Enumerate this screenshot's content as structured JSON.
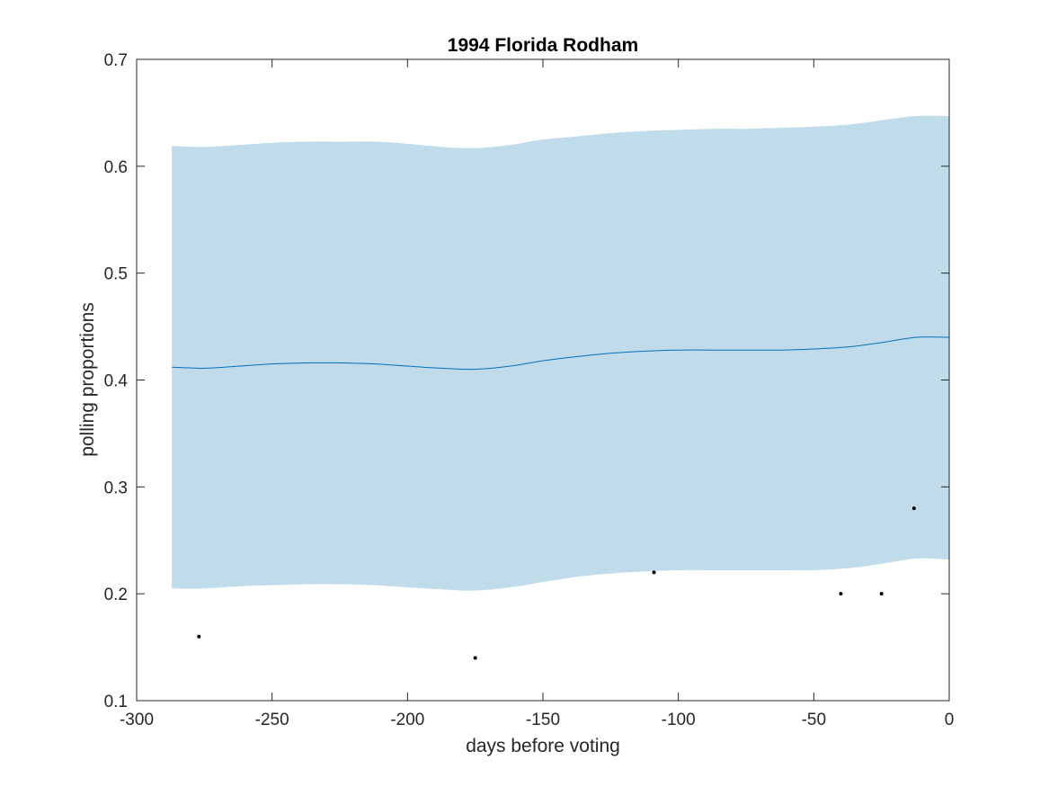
{
  "chart_data": {
    "type": "line",
    "title": "1994 Florida Rodham",
    "xlabel": "days before voting",
    "ylabel": "polling proportions",
    "xlim": [
      -300,
      0
    ],
    "ylim": [
      0.1,
      0.7
    ],
    "xticks": [
      -300,
      -250,
      -200,
      -150,
      -100,
      -50,
      0
    ],
    "yticks": [
      0.1,
      0.2,
      0.3,
      0.4,
      0.5,
      0.6,
      0.7
    ],
    "xtick_labels": [
      "-300",
      "-250",
      "-200",
      "-150",
      "-100",
      "-50",
      "0"
    ],
    "ytick_labels": [
      "0.1",
      "0.2",
      "0.3",
      "0.4",
      "0.5",
      "0.6",
      "0.7"
    ],
    "grid": false,
    "series": [
      {
        "kind": "mean-line",
        "color": "#0072bd",
        "x": [
          -287,
          -275,
          -262,
          -250,
          -237,
          -225,
          -212,
          -200,
          -187,
          -175,
          -162,
          -150,
          -137,
          -125,
          -112,
          -100,
          -87,
          -75,
          -62,
          -50,
          -37,
          -25,
          -12,
          0
        ],
        "y": [
          0.412,
          0.411,
          0.413,
          0.415,
          0.416,
          0.416,
          0.415,
          0.413,
          0.411,
          0.41,
          0.413,
          0.418,
          0.422,
          0.425,
          0.427,
          0.428,
          0.428,
          0.428,
          0.428,
          0.429,
          0.431,
          0.435,
          0.44,
          0.44
        ]
      },
      {
        "kind": "band-upper",
        "color": "#c0dcea",
        "x": [
          -287,
          -275,
          -262,
          -250,
          -237,
          -225,
          -212,
          -200,
          -187,
          -175,
          -162,
          -150,
          -137,
          -125,
          -112,
          -100,
          -87,
          -75,
          -62,
          -50,
          -37,
          -25,
          -12,
          0
        ],
        "y": [
          0.619,
          0.618,
          0.62,
          0.622,
          0.623,
          0.623,
          0.623,
          0.621,
          0.618,
          0.617,
          0.62,
          0.625,
          0.628,
          0.631,
          0.633,
          0.634,
          0.635,
          0.635,
          0.636,
          0.637,
          0.639,
          0.643,
          0.647,
          0.647
        ]
      },
      {
        "kind": "band-lower",
        "color": "#c0dcea",
        "x": [
          -287,
          -275,
          -262,
          -250,
          -237,
          -225,
          -212,
          -200,
          -187,
          -175,
          -162,
          -150,
          -137,
          -125,
          -112,
          -100,
          -87,
          -75,
          -62,
          -50,
          -37,
          -25,
          -12,
          0
        ],
        "y": [
          0.205,
          0.205,
          0.207,
          0.208,
          0.209,
          0.209,
          0.208,
          0.206,
          0.204,
          0.203,
          0.206,
          0.211,
          0.216,
          0.219,
          0.221,
          0.222,
          0.222,
          0.222,
          0.222,
          0.222,
          0.224,
          0.228,
          0.233,
          0.232
        ]
      },
      {
        "kind": "points",
        "color": "#000000",
        "x": [
          -277,
          -175,
          -109,
          -40,
          -25,
          -13
        ],
        "y": [
          0.16,
          0.14,
          0.22,
          0.2,
          0.2,
          0.28
        ]
      }
    ]
  }
}
